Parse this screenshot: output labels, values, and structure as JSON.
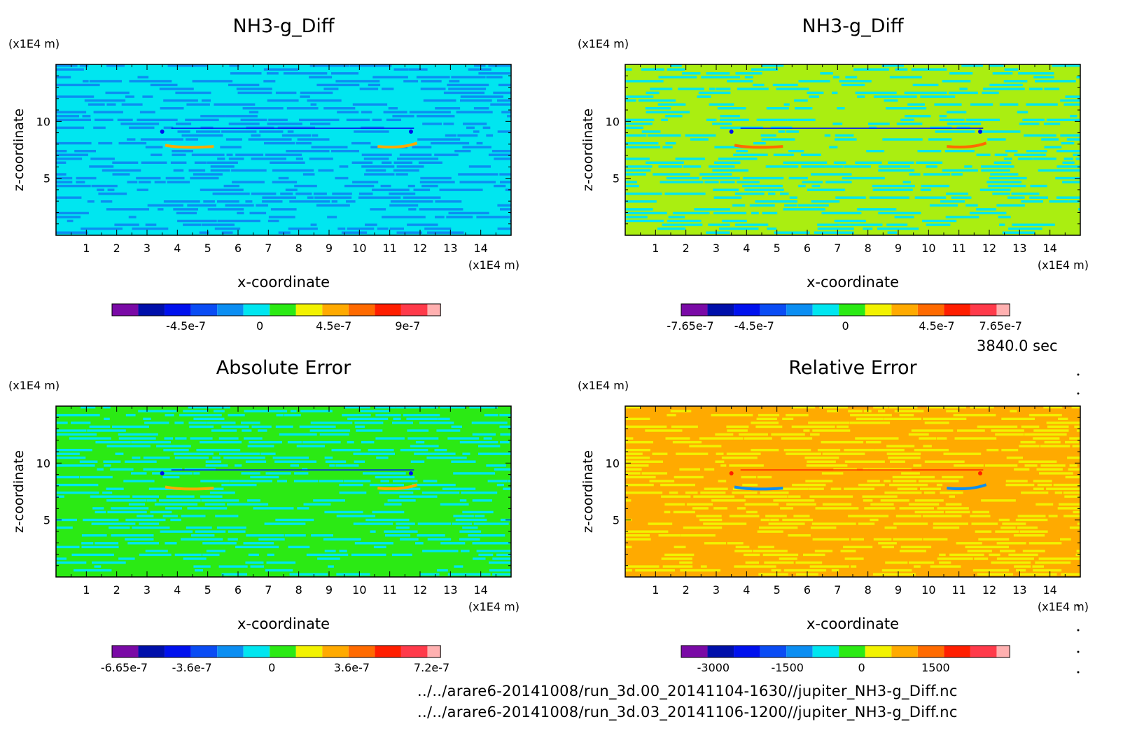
{
  "time_label": "3840.0 sec",
  "files": [
    "../../arare6-20141008/run_3d.00_20141104-1630//jupiter_NH3-g_Diff.nc",
    "../../arare6-20141008/run_3d.03_20141106-1200//jupiter_NH3-g_Diff.nc"
  ],
  "colors": {
    "palette": [
      "#7a0aa6",
      "#000faa",
      "#0011ee",
      "#0a4cf4",
      "#0b8ef2",
      "#00e6f0",
      "#2bea14",
      "#f2f200",
      "#ffaa00",
      "#ff6a00",
      "#ff1e00",
      "#ff3a4a",
      "#ffb0b0"
    ]
  },
  "chart_data": [
    {
      "type": "heatmap",
      "title": "NH3-g_Diff",
      "xlabel": "x-coordinate",
      "ylabel": "z-coordinate",
      "x_unit": "(x1E4 m)",
      "y_unit": "(x1E4 m)",
      "xlim": [
        0,
        15
      ],
      "ylim": [
        0,
        15
      ],
      "x_ticks": [
        1,
        2,
        3,
        4,
        5,
        6,
        7,
        8,
        9,
        10,
        11,
        12,
        13,
        14
      ],
      "y_ticks": [
        5,
        10
      ],
      "colorbar": {
        "levels": 12,
        "tick_labels": [
          "-4.5e-7",
          "0",
          "4.5e-7",
          "9e-7"
        ],
        "tick_values": [
          -4.5e-07,
          0,
          4.5e-07,
          9e-07
        ],
        "range": [
          -9e-07,
          1.1e-06
        ]
      },
      "dominant_colors": [
        "#00e6f0",
        "#0b8ef2"
      ],
      "accent_colors": [
        "#0011ee",
        "#ffaa00",
        "#f2f200"
      ]
    },
    {
      "type": "heatmap",
      "title": "NH3-g_Diff",
      "xlabel": "x-coordinate",
      "ylabel": "z-coordinate",
      "x_unit": "(x1E4 m)",
      "y_unit": "(x1E4 m)",
      "xlim": [
        0,
        15
      ],
      "ylim": [
        0,
        15
      ],
      "x_ticks": [
        1,
        2,
        3,
        4,
        5,
        6,
        7,
        8,
        9,
        10,
        11,
        12,
        13,
        14
      ],
      "y_ticks": [
        5,
        10
      ],
      "colorbar": {
        "levels": 12,
        "tick_labels": [
          "-7.65e-7",
          "-4.5e-7",
          "0",
          "4.5e-7",
          "7.65e-7"
        ],
        "tick_values": [
          -7.65e-07,
          -4.5e-07,
          0,
          4.5e-07,
          7.65e-07
        ],
        "range": [
          -8.1e-07,
          8.1e-07
        ]
      },
      "dominant_colors": [
        "#aaee11",
        "#00e6f0"
      ],
      "accent_colors": [
        "#0011ee",
        "#ff6a00",
        "#f2f200"
      ]
    },
    {
      "type": "heatmap",
      "title": "Absolute Error",
      "xlabel": "x-coordinate",
      "ylabel": "z-coordinate",
      "x_unit": "(x1E4 m)",
      "y_unit": "(x1E4 m)",
      "xlim": [
        0,
        15
      ],
      "ylim": [
        0,
        15
      ],
      "x_ticks": [
        1,
        2,
        3,
        4,
        5,
        6,
        7,
        8,
        9,
        10,
        11,
        12,
        13,
        14
      ],
      "y_ticks": [
        5,
        10
      ],
      "colorbar": {
        "levels": 12,
        "tick_labels": [
          "-6.65e-7",
          "-3.6e-7",
          "0",
          "3.6e-7",
          "7.2e-7"
        ],
        "tick_values": [
          -6.65e-07,
          -3.6e-07,
          0,
          3.6e-07,
          7.2e-07
        ],
        "range": [
          -7.2e-07,
          7.6e-07
        ]
      },
      "dominant_colors": [
        "#2bea14",
        "#00e6f0"
      ],
      "accent_colors": [
        "#0011ee",
        "#ffaa00",
        "#f2f200"
      ]
    },
    {
      "type": "heatmap",
      "title": "Relative Error",
      "xlabel": "x-coordinate",
      "ylabel": "z-coordinate",
      "x_unit": "(x1E4 m)",
      "y_unit": "(x1E4 m)",
      "xlim": [
        0,
        15
      ],
      "ylim": [
        0,
        15
      ],
      "x_ticks": [
        1,
        2,
        3,
        4,
        5,
        6,
        7,
        8,
        9,
        10,
        11,
        12,
        13,
        14
      ],
      "y_ticks": [
        5,
        10
      ],
      "colorbar": {
        "levels": 12,
        "tick_labels": [
          "-3000",
          "-1500",
          "0",
          "1500"
        ],
        "tick_values": [
          -3000,
          -1500,
          0,
          1500
        ],
        "range": [
          -3650,
          3000
        ]
      },
      "dominant_colors": [
        "#ffaa00",
        "#f2f200"
      ],
      "accent_colors": [
        "#ff1e00",
        "#0b8ef2"
      ]
    }
  ]
}
